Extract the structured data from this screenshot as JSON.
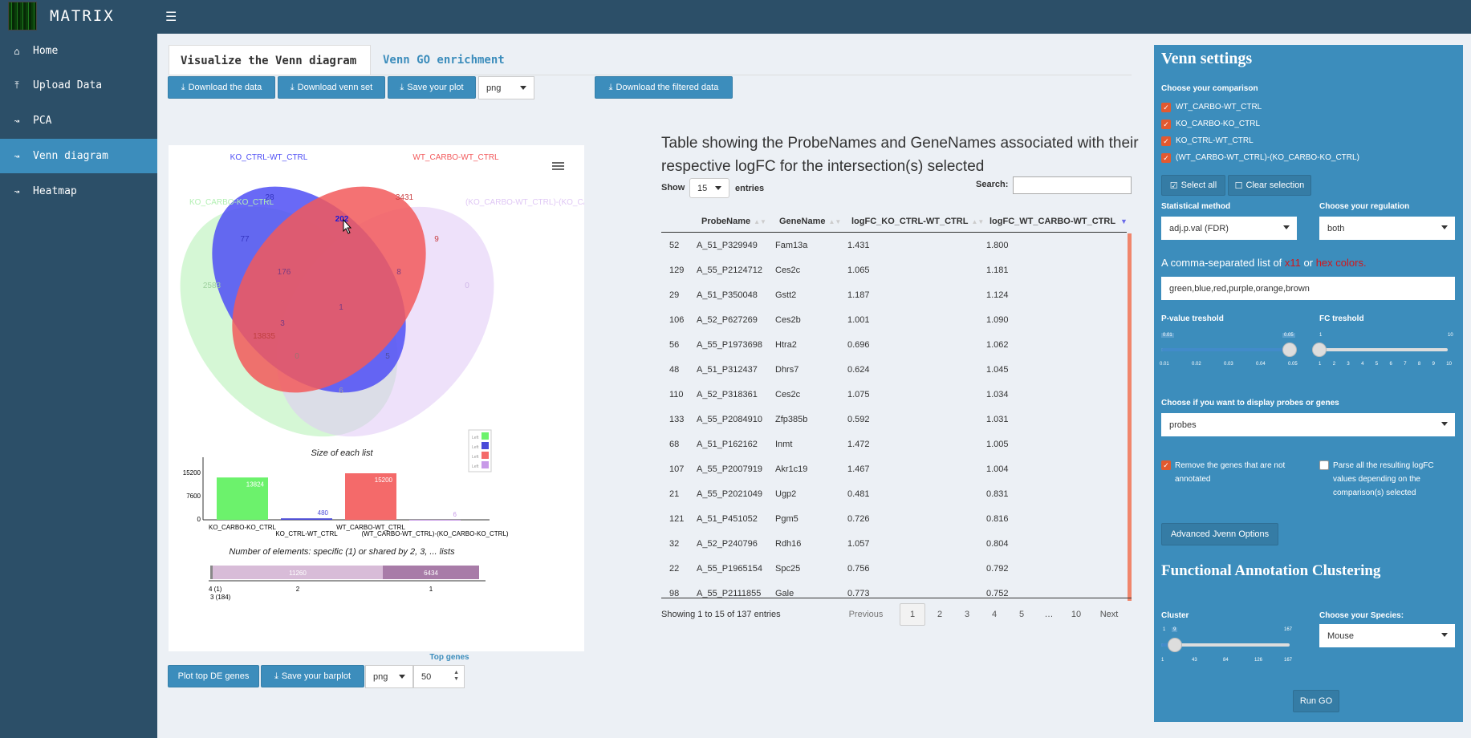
{
  "app": {
    "title": "MATRIX"
  },
  "sidebar": {
    "items": [
      {
        "label": "Home",
        "icon": "home-icon"
      },
      {
        "label": "Upload Data",
        "icon": "upload-icon"
      },
      {
        "label": "PCA",
        "icon": "line-chart-icon"
      },
      {
        "label": "Venn diagram",
        "icon": "line-chart-icon"
      },
      {
        "label": "Heatmap",
        "icon": "line-chart-icon"
      }
    ],
    "active": "Venn diagram"
  },
  "tabs": [
    {
      "label": "Visualize the Venn diagram"
    },
    {
      "label": "Venn GO enrichment"
    }
  ],
  "toolbar": {
    "download_data": "Download the data",
    "download_venn_set": "Download venn set",
    "save_plot": "Save your plot",
    "format": "png",
    "download_filtered": "Download the filtered data"
  },
  "venn": {
    "set_labels": [
      "KO_CTRL-WT_CTRL",
      "WT_CARBO-WT_CTRL",
      "KO_CARBO-KO_CTRL",
      "(KO_CARBO-WT_CTRL)-(KO_CARBO-KO_CTRL)"
    ],
    "region_values": [
      "202",
      "28",
      "3431",
      "2583",
      "77",
      "9",
      "176",
      "8",
      "0",
      "1",
      "3",
      "13835",
      "0",
      "5",
      "6"
    ],
    "colors": [
      "#4f4ff5",
      "#f2595b",
      "#b3f0b3",
      "#e0c8f5"
    ],
    "bar_title": "Size of each list",
    "bar_y_ticks": [
      "15200",
      "7600",
      "0"
    ],
    "bar_categories": [
      "KO_CARBO-KO_CTRL",
      "KO_CTRL-WT_CTRL",
      "WT_CARBO-WT_CTRL",
      "(WT_CARBO-WT_CTRL)-(KO_CARBO-KO_CTRL)"
    ],
    "bar_values": [
      13824,
      480,
      15200,
      6
    ],
    "bar_colors": [
      "#6cf26c",
      "#4a4ad8",
      "#f46a6a",
      "#c89ae8"
    ],
    "legend_entries": [
      "Left",
      "Left",
      "Left",
      "Left"
    ],
    "shared_title": "Number of elements: specific (1) or shared by 2, 3, ... lists",
    "shared_values": [
      "11260",
      "6434"
    ],
    "shared_axis": [
      "4 (1)",
      "3 (184)",
      "2",
      "1"
    ]
  },
  "bottom": {
    "plot_top": "Plot top DE genes",
    "save_barplot": "Save your barplot",
    "format": "png",
    "top_genes_label": "Top genes",
    "top_genes_value": "50"
  },
  "table": {
    "title": "Table showing the ProbeNames and GeneNames associated with their respective logFC for the intersection(s) selected",
    "show_label": "Show",
    "entries_value": "15",
    "entries_label": "entries",
    "search_label": "Search:",
    "columns": [
      "ProbeName",
      "GeneName",
      "logFC_KO_CTRL-WT_CTRL",
      "logFC_WT_CARBO-WT_CTRL"
    ],
    "rows": [
      [
        "52",
        "A_51_P329949",
        "Fam13a",
        "1.431",
        "1.800"
      ],
      [
        "129",
        "A_55_P2124712",
        "Ces2c",
        "1.065",
        "1.181"
      ],
      [
        "29",
        "A_51_P350048",
        "Gstt2",
        "1.187",
        "1.124"
      ],
      [
        "106",
        "A_52_P627269",
        "Ces2b",
        "1.001",
        "1.090"
      ],
      [
        "56",
        "A_55_P1973698",
        "Htra2",
        "0.696",
        "1.062"
      ],
      [
        "48",
        "A_51_P312437",
        "Dhrs7",
        "0.624",
        "1.045"
      ],
      [
        "110",
        "A_52_P318361",
        "Ces2c",
        "1.075",
        "1.034"
      ],
      [
        "133",
        "A_55_P2084910",
        "Zfp385b",
        "0.592",
        "1.031"
      ],
      [
        "68",
        "A_51_P162162",
        "Inmt",
        "1.472",
        "1.005"
      ],
      [
        "107",
        "A_55_P2007919",
        "Akr1c19",
        "1.467",
        "1.004"
      ],
      [
        "21",
        "A_55_P2021049",
        "Ugp2",
        "0.481",
        "0.831"
      ],
      [
        "121",
        "A_51_P451052",
        "Pgm5",
        "0.726",
        "0.816"
      ],
      [
        "32",
        "A_52_P240796",
        "Rdh16",
        "1.057",
        "0.804"
      ],
      [
        "22",
        "A_55_P1965154",
        "Spc25",
        "0.756",
        "0.792"
      ],
      [
        "98",
        "A_55_P2111855",
        "Gale",
        "0.773",
        "0.752"
      ]
    ],
    "info": "Showing 1 to 15 of 137 entries",
    "pagination": [
      "Previous",
      "1",
      "2",
      "3",
      "4",
      "5",
      "…",
      "10",
      "Next"
    ]
  },
  "settings": {
    "title": "Venn settings",
    "comparison_label": "Choose your comparison",
    "comparisons": [
      "WT_CARBO-WT_CTRL",
      "KO_CARBO-KO_CTRL",
      "KO_CTRL-WT_CTRL",
      "(WT_CARBO-WT_CTRL)-(KO_CARBO-KO_CTRL)"
    ],
    "select_all": "Select all",
    "clear_selection": "Clear selection",
    "stat_label": "Statistical method",
    "stat_value": "adj.p.val (FDR)",
    "reg_label": "Choose your regulation",
    "reg_value": "both",
    "colors_text_a": "A comma-separated list of ",
    "colors_link_x11": "x11",
    "colors_text_or": " or ",
    "colors_link_hex": "hex colors.",
    "colors_value": "green,blue,red,purple,orange,brown",
    "pval_label": "P-value treshold",
    "pval_min": "0.01",
    "pval_value": "0.05",
    "pval_value_num": 0.05,
    "pval_ticks": [
      "0.01",
      "0.02",
      "0.03",
      "0.04",
      "0.05"
    ],
    "fc_label": "FC treshold",
    "fc_min": "1",
    "fc_max": "10",
    "fc_value_num": 1,
    "fc_ticks": [
      "1",
      "2",
      "3",
      "4",
      "5",
      "6",
      "7",
      "8",
      "9",
      "10"
    ],
    "display_label": "Choose if you want to display probes or genes",
    "display_value": "probes",
    "remove_label": "Remove the genes that are not annotated",
    "parse_label": "Parse all the resulting logFC values depending on the comparison(s) selected",
    "advanced": "Advanced Jvenn Options",
    "func_title": "Functional Annotation Clustering",
    "cluster_label": "Cluster",
    "cluster_min": "1",
    "cluster_value": "9",
    "cluster_max": "167",
    "cluster_ticks": [
      "1",
      "43",
      "84",
      "126",
      "167"
    ],
    "species_label": "Choose your Species:",
    "species_value": "Mouse",
    "run_go": "Run GO"
  }
}
